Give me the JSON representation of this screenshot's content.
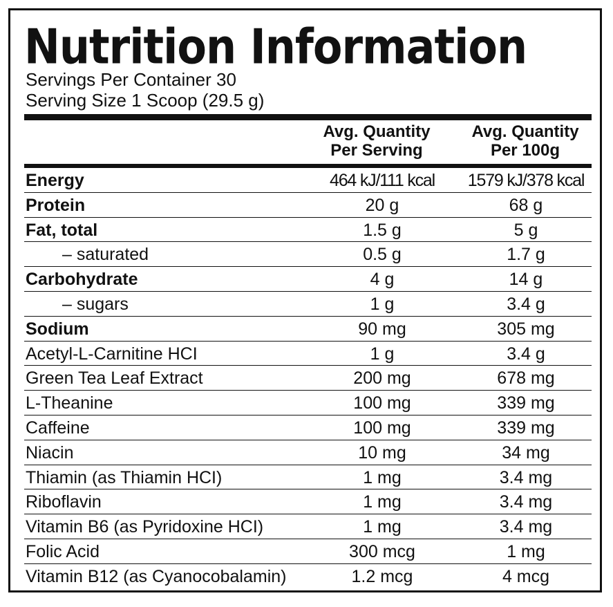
{
  "title": "Nutrition Information",
  "servings_per_container": "Servings Per Container 30",
  "serving_size": "Serving Size 1 Scoop (29.5 g)",
  "columns": {
    "per_serving": {
      "line1": "Avg. Quantity",
      "line2": "Per Serving"
    },
    "per_100g": {
      "line1": "Avg. Quantity",
      "line2": "Per 100g"
    }
  },
  "rows": [
    {
      "name": "Energy",
      "bold": true,
      "per_serving": "464 kJ/111 kcal",
      "per_100g": "1579 kJ/378 kcal"
    },
    {
      "name": "Protein",
      "bold": true,
      "per_serving": "20 g",
      "per_100g": "68 g"
    },
    {
      "name": "Fat, total",
      "bold": true,
      "per_serving": "1.5 g",
      "per_100g": "5 g"
    },
    {
      "name": "– saturated",
      "indent": true,
      "per_serving": "0.5 g",
      "per_100g": "1.7 g"
    },
    {
      "name": "Carbohydrate",
      "bold": true,
      "per_serving": "4 g",
      "per_100g": "14 g"
    },
    {
      "name": "– sugars",
      "indent": true,
      "per_serving": "1 g",
      "per_100g": "3.4 g"
    },
    {
      "name": "Sodium",
      "bold": true,
      "per_serving": "90 mg",
      "per_100g": "305 mg"
    },
    {
      "name": "Acetyl-L-Carnitine HCI",
      "per_serving": "1 g",
      "per_100g": "3.4 g"
    },
    {
      "name": "Green Tea Leaf Extract",
      "per_serving": "200 mg",
      "per_100g": "678 mg"
    },
    {
      "name": "L-Theanine",
      "per_serving": "100 mg",
      "per_100g": "339 mg"
    },
    {
      "name": "Caffeine",
      "per_serving": "100 mg",
      "per_100g": "339 mg"
    },
    {
      "name": "Niacin",
      "per_serving": "10 mg",
      "per_100g": "34 mg"
    },
    {
      "name": "Thiamin (as Thiamin HCI)",
      "per_serving": "1 mg",
      "per_100g": "3.4 mg"
    },
    {
      "name": "Riboflavin",
      "per_serving": "1 mg",
      "per_100g": "3.4 mg"
    },
    {
      "name": "Vitamin B6 (as Pyridoxine HCI)",
      "per_serving": "1 mg",
      "per_100g": "3.4 mg"
    },
    {
      "name": "Folic Acid",
      "per_serving": "300 mcg",
      "per_100g": "1 mg"
    },
    {
      "name": "Vitamin B12 (as Cyanocobalamin)",
      "per_serving": "1.2 mcg",
      "per_100g": "4 mcg"
    }
  ],
  "colors": {
    "ink": "#111111",
    "background": "#ffffff"
  }
}
